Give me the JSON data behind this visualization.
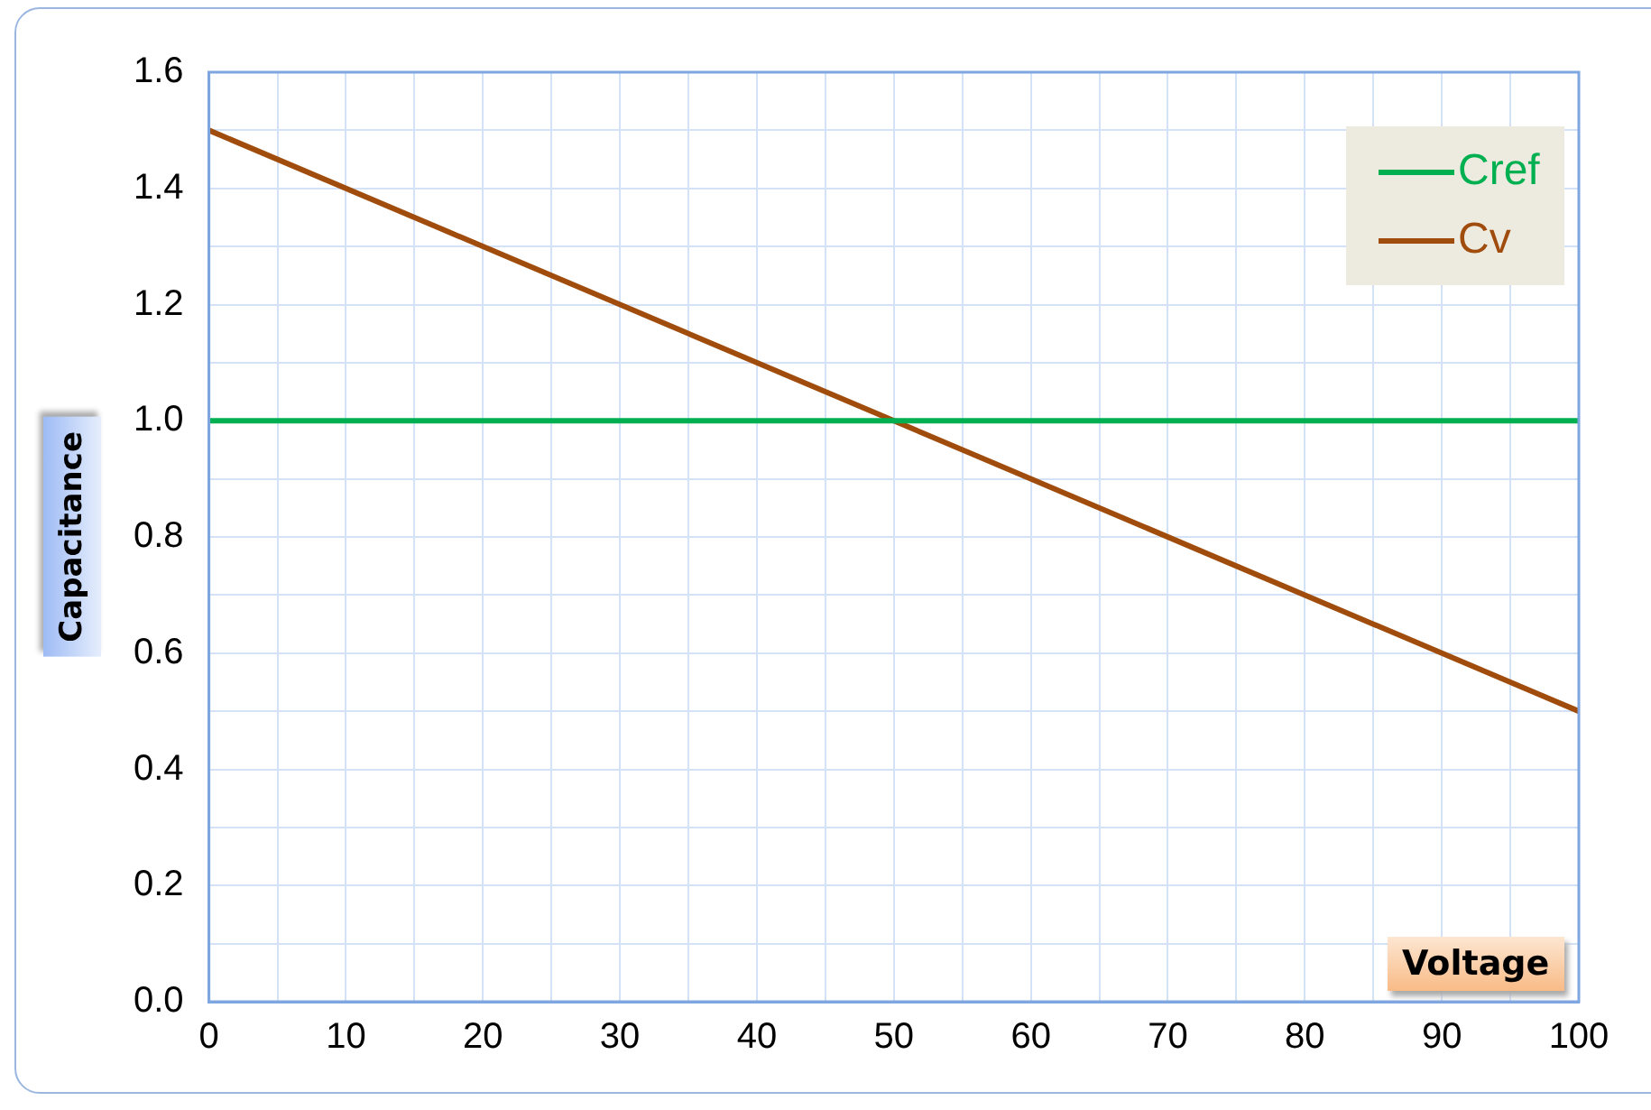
{
  "chart_data": {
    "type": "line",
    "xlabel": "Voltage",
    "ylabel": "Capacitance",
    "x": [
      0,
      100
    ],
    "series": [
      {
        "name": "Cref",
        "color": "#00b050",
        "values": [
          1.0,
          1.0
        ]
      },
      {
        "name": "Cv",
        "color": "#a04c0c",
        "values": [
          1.5,
          0.5
        ]
      }
    ],
    "xlim": [
      0,
      100
    ],
    "xticks": [
      0,
      {
        "value": 5,
        "label": null
      },
      10,
      {
        "value": 15,
        "label": null
      },
      20,
      {
        "value": 25,
        "label": null
      },
      30,
      {
        "value": 35,
        "label": null
      },
      40,
      {
        "value": 45,
        "label": null
      },
      50,
      {
        "value": 55,
        "label": null
      },
      60,
      {
        "value": 65,
        "label": null
      },
      70,
      {
        "value": 75,
        "label": null
      },
      80,
      {
        "value": 85,
        "label": null
      },
      90,
      {
        "value": 95,
        "label": null
      },
      100
    ],
    "ylim": [
      0,
      1.6
    ],
    "yticks": [
      {
        "value": 0,
        "label": "0.0"
      },
      {
        "value": 0.1,
        "label": null
      },
      {
        "value": 0.2,
        "label": "0.2"
      },
      {
        "value": 0.3,
        "label": null
      },
      {
        "value": 0.4,
        "label": "0.4"
      },
      {
        "value": 0.5,
        "label": null
      },
      {
        "value": 0.6,
        "label": "0.6"
      },
      {
        "value": 0.7,
        "label": null
      },
      {
        "value": 0.8,
        "label": "0.8"
      },
      {
        "value": 0.9,
        "label": null
      },
      {
        "value": 1.0,
        "label": "1.0"
      },
      {
        "value": 1.1,
        "label": null
      },
      {
        "value": 1.2,
        "label": "1.2"
      },
      {
        "value": 1.3,
        "label": null
      },
      {
        "value": 1.4,
        "label": "1.4"
      },
      {
        "value": 1.5,
        "label": null
      },
      {
        "value": 1.6,
        "label": "1.6"
      }
    ],
    "grid": true,
    "legend": "top right",
    "marker": "none",
    "line_style": "solid"
  }
}
